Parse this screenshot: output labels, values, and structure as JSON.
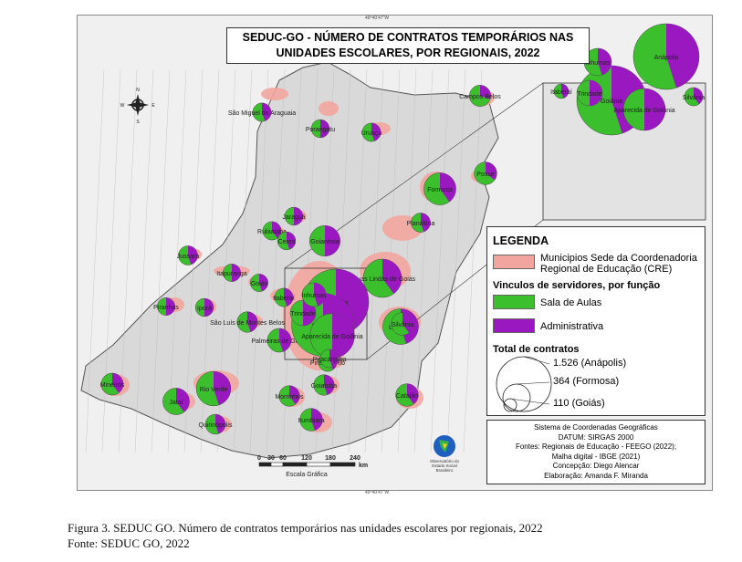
{
  "map": {
    "title_line1": "SEDUC-GO - NÚMERO DE CONTRATOS TEMPORÁRIOS NAS",
    "title_line2": "UNIDADES ESCOLARES, POR REGIONAIS, 2022",
    "coord_top": "49°40'47\"W",
    "coord_bottom": "49°40'47\"W",
    "colors": {
      "cre": "#f2a59e",
      "sala": "#3cbf2c",
      "adm": "#9a18c0",
      "base": "#d9d9d9"
    }
  },
  "legend": {
    "heading": "LEGENDA",
    "cre_label_1": "Municipios Sede da Coordenadoria",
    "cre_label_2": "Regional de Educação (CRE)",
    "vinculos_heading": "Vinculos de servidores, por função",
    "sala_label": "Sala de Aulas",
    "adm_label": "Administrativa",
    "total_heading": "Total de contratos",
    "total_max": "1.526 (Anápolis)",
    "total_mid": "364 (Formosa)",
    "total_min": "110 (Goiás)"
  },
  "info": {
    "line1": "Sistema de Coordenadas Geográficas",
    "line2": "DATUM: SIRGAS 2000",
    "line3": "Fontes: Regionais de Educação - FEEGO (2022);",
    "line4": "Malha digital - IBGE (2021)",
    "line5": "Concepção: Diego Alencar",
    "line6": "Elaboração: Amanda F. Miranda"
  },
  "scale": {
    "ticks": [
      "0",
      "30",
      "60",
      "120",
      "180",
      "240"
    ],
    "unit": "km",
    "label": "Escala Gráfica"
  },
  "logo": {
    "line1": "Observatório do",
    "line2": "Estado Social",
    "line3": "Brasileiro"
  },
  "compass": {
    "n": "N",
    "s": "S",
    "e": "E",
    "w": "W"
  },
  "regions": [
    {
      "name": "São Miguel do Araguaia",
      "total": 120,
      "adm_share": 0.45
    },
    {
      "name": "Porangatu",
      "total": 115,
      "adm_share": 0.5
    },
    {
      "name": "Uruaçu",
      "total": 120,
      "adm_share": 0.45
    },
    {
      "name": "Campos Belos",
      "total": 160,
      "adm_share": 0.3
    },
    {
      "name": "Posse",
      "total": 180,
      "adm_share": 0.35
    },
    {
      "name": "Formosa",
      "total": 364,
      "adm_share": 0.4
    },
    {
      "name": "Planaltina",
      "total": 130,
      "adm_share": 0.45
    },
    {
      "name": "Jaraguá",
      "total": 115,
      "adm_share": 0.5
    },
    {
      "name": "Rubiataba",
      "total": 120,
      "adm_share": 0.4
    },
    {
      "name": "Ceres",
      "total": 115,
      "adm_share": 0.45
    },
    {
      "name": "Goianésia",
      "total": 330,
      "adm_share": 0.5
    },
    {
      "name": "Jussara",
      "total": 130,
      "adm_share": 0.45
    },
    {
      "name": "Itapuranga",
      "total": 110,
      "adm_share": 0.5
    },
    {
      "name": "Goiás",
      "total": 110,
      "adm_share": 0.45
    },
    {
      "name": "Águas Lindas de Goiás",
      "total": 520,
      "adm_share": 0.4
    },
    {
      "name": "Luziânia",
      "total": 450,
      "adm_share": 0.45
    },
    {
      "name": "Piranhas",
      "total": 110,
      "adm_share": 0.5
    },
    {
      "name": "Iporá",
      "total": 115,
      "adm_share": 0.5
    },
    {
      "name": "São Luís de Montes Belos",
      "total": 150,
      "adm_share": 0.45
    },
    {
      "name": "Itaberaí",
      "total": 120,
      "adm_share": 0.45
    },
    {
      "name": "Palmeiras de Goiás",
      "total": 200,
      "adm_share": 0.45
    },
    {
      "name": "Silvânia",
      "total": 180,
      "adm_share": 0.4
    },
    {
      "name": "Pires do Rio",
      "total": 120,
      "adm_share": 0.4
    },
    {
      "name": "Mineiros",
      "total": 170,
      "adm_share": 0.4
    },
    {
      "name": "Rio Verde",
      "total": 420,
      "adm_share": 0.45
    },
    {
      "name": "Jataí",
      "total": 250,
      "adm_share": 0.4
    },
    {
      "name": "Quirinópolis",
      "total": 140,
      "adm_share": 0.45
    },
    {
      "name": "Morrinhos",
      "total": 150,
      "adm_share": 0.4
    },
    {
      "name": "Goiatuba",
      "total": 150,
      "adm_share": 0.45
    },
    {
      "name": "Itumbiara",
      "total": 180,
      "adm_share": 0.45
    },
    {
      "name": "Catalão",
      "total": 180,
      "adm_share": 0.4
    },
    {
      "name": "Anápolis",
      "total": 1526,
      "adm_share": 0.45
    },
    {
      "name": "Goiânia",
      "total": 1400,
      "adm_share": 0.45
    },
    {
      "name": "Trindade",
      "total": 230,
      "adm_share": 0.5
    },
    {
      "name": "Inhumas",
      "total": 200,
      "adm_share": 0.45
    },
    {
      "name": "Aparecida de Goiânia",
      "total": 700,
      "adm_share": 0.5
    },
    {
      "name": "Piracanjuba",
      "total": 120,
      "adm_share": 0.45
    }
  ],
  "caption": {
    "line1": "Figura 3. SEDUC GO. Número de contratos temporários nas unidades escolares por regionais, 2022",
    "line2": "Fonte: SEDUC GO, 2022"
  }
}
